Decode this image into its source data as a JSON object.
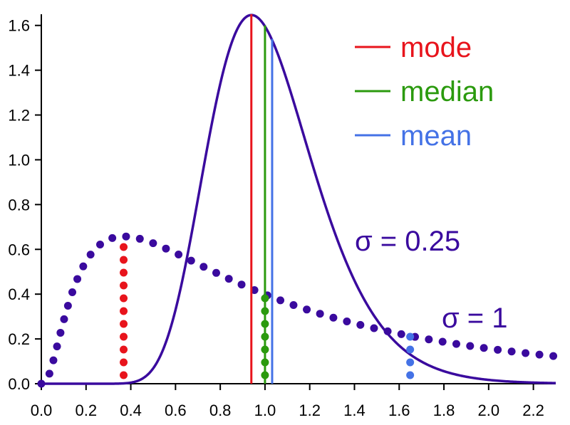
{
  "chart_data": {
    "type": "line",
    "title": "",
    "xlabel": "",
    "ylabel": "",
    "xlim": [
      0,
      2.3
    ],
    "ylim": [
      0,
      1.65
    ],
    "x_ticks": [
      "0.0",
      "0.2",
      "0.4",
      "0.6",
      "0.8",
      "1.0",
      "1.2",
      "1.4",
      "1.6",
      "1.8",
      "2.0",
      "2.2"
    ],
    "y_ticks": [
      "0.0",
      "0.2",
      "0.4",
      "0.6",
      "0.8",
      "1.0",
      "1.2",
      "1.4",
      "1.6"
    ],
    "grid": false,
    "legend_position": "top-right",
    "legend": [
      {
        "label": "mode",
        "color": "#e8141c"
      },
      {
        "label": "median",
        "color": "#2b9a0e"
      },
      {
        "label": "mean",
        "color": "#4472e6"
      }
    ],
    "series": [
      {
        "sigma": 0.25,
        "style": "solid",
        "color": "#3a0a9e",
        "mu": 0,
        "label": "σ = 0.25"
      },
      {
        "sigma": 1,
        "style": "dotted",
        "color": "#3a0a9e",
        "mu": 0,
        "label": "σ = 1"
      }
    ],
    "markers": [
      {
        "series": 0,
        "stat": "mode",
        "x": 0.939,
        "y": 1.65,
        "style": "solid",
        "color": "#e8141c"
      },
      {
        "series": 0,
        "stat": "median",
        "x": 1.0,
        "y": 1.6,
        "style": "solid",
        "color": "#2b9a0e"
      },
      {
        "series": 0,
        "stat": "mean",
        "x": 1.032,
        "y": 1.54,
        "style": "solid",
        "color": "#4472e6"
      },
      {
        "series": 1,
        "stat": "mode",
        "x": 0.368,
        "y": 0.66,
        "style": "dotted",
        "color": "#e8141c"
      },
      {
        "series": 1,
        "stat": "median",
        "x": 1.0,
        "y": 0.4,
        "style": "dotted",
        "color": "#2b9a0e"
      },
      {
        "series": 1,
        "stat": "mean",
        "x": 1.649,
        "y": 0.22,
        "style": "dotted",
        "color": "#4472e6"
      }
    ]
  }
}
